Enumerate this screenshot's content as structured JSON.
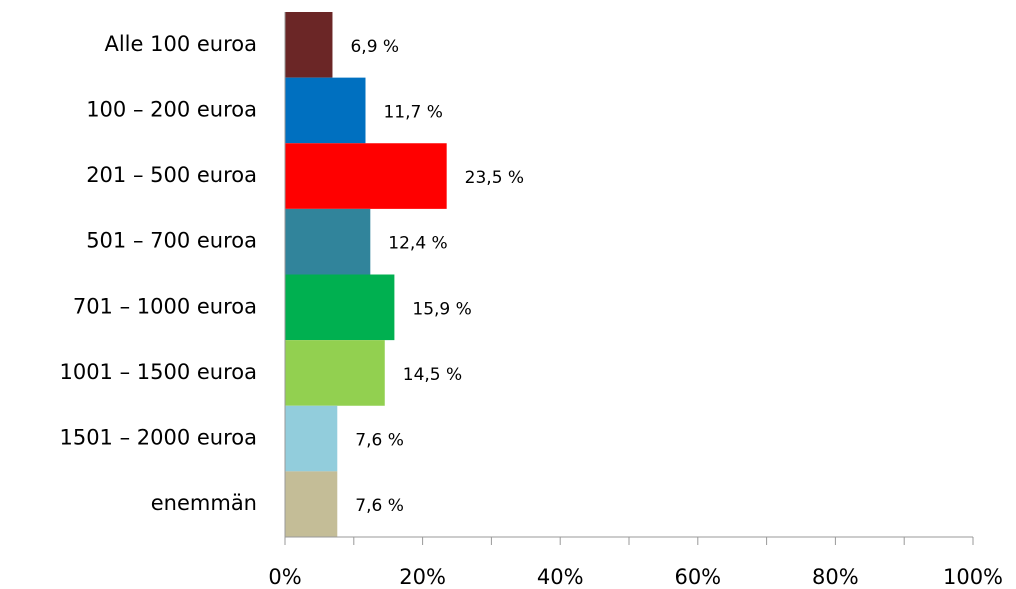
{
  "chart_data": {
    "type": "hbar",
    "categories": [
      "Alle 100 euroa",
      "100 – 200 euroa",
      "201 – 500 euroa",
      "501 – 700 euroa",
      "701 – 1000 euroa",
      "1001 – 1500 euroa",
      "1501 – 2000 euroa",
      "enemmän"
    ],
    "values": [
      6.9,
      11.7,
      23.5,
      12.4,
      15.9,
      14.5,
      7.6,
      7.6
    ],
    "value_labels": [
      "6,9 %",
      "11,7 %",
      "23,5 %",
      "12,4 %",
      "15,9 %",
      "14,5 %",
      "7,6 %",
      "7,6 %"
    ],
    "colors": [
      "#6b2626",
      "#0070c0",
      "#ff0000",
      "#31849b",
      "#00b050",
      "#92d050",
      "#92cddc",
      "#c4bd97"
    ],
    "xlim": [
      0,
      100
    ],
    "xticks": [
      {
        "value": 0,
        "label": "0%"
      },
      {
        "value": 20,
        "label": "20%"
      },
      {
        "value": 40,
        "label": "40%"
      },
      {
        "value": 60,
        "label": "60%"
      },
      {
        "value": 80,
        "label": "80%"
      },
      {
        "value": 100,
        "label": "100%"
      }
    ],
    "minor_xticks": [
      10,
      30,
      50,
      70,
      90
    ]
  }
}
